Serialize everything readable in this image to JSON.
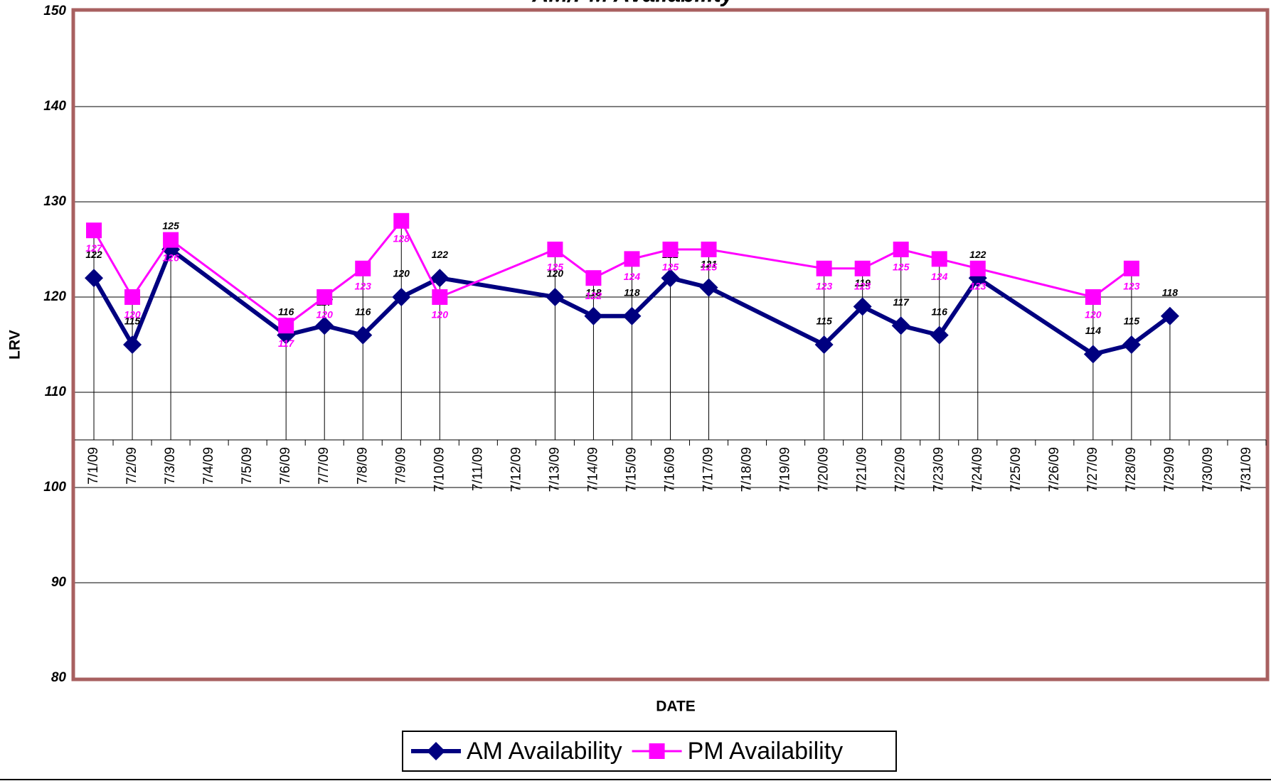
{
  "chart_data": {
    "type": "line",
    "title": "AM/PM Availability",
    "x_label": "DATE",
    "y_label": "LRV",
    "categories": [
      "7/1/09",
      "7/2/09",
      "7/3/09",
      "7/4/09",
      "7/5/09",
      "7/6/09",
      "7/7/09",
      "7/8/09",
      "7/9/09",
      "7/10/09",
      "7/11/09",
      "7/12/09",
      "7/13/09",
      "7/14/09",
      "7/15/09",
      "7/16/09",
      "7/17/09",
      "7/18/09",
      "7/19/09",
      "7/20/09",
      "7/21/09",
      "7/22/09",
      "7/23/09",
      "7/24/09",
      "7/25/09",
      "7/26/09",
      "7/27/09",
      "7/28/09",
      "7/29/09",
      "7/30/09",
      "7/31/09"
    ],
    "series": [
      {
        "name": "AM Availability",
        "color": "#000080",
        "marker": "diamond",
        "x": [
          "7/1/09",
          "7/2/09",
          "7/3/09",
          "7/6/09",
          "7/7/09",
          "7/8/09",
          "7/9/09",
          "7/10/09",
          "7/13/09",
          "7/14/09",
          "7/15/09",
          "7/16/09",
          "7/17/09",
          "7/20/09",
          "7/21/09",
          "7/22/09",
          "7/23/09",
          "7/24/09",
          "7/27/09",
          "7/28/09",
          "7/29/09"
        ],
        "values": [
          122,
          115,
          125,
          116,
          117,
          116,
          120,
          122,
          120,
          118,
          118,
          122,
          121,
          115,
          119,
          117,
          116,
          122,
          114,
          115,
          118
        ]
      },
      {
        "name": "PM Availability",
        "color": "#ff00ff",
        "marker": "square",
        "x": [
          "7/1/09",
          "7/2/09",
          "7/3/09",
          "7/6/09",
          "7/7/09",
          "7/8/09",
          "7/9/09",
          "7/10/09",
          "7/13/09",
          "7/14/09",
          "7/15/09",
          "7/16/09",
          "7/17/09",
          "7/20/09",
          "7/21/09",
          "7/22/09",
          "7/23/09",
          "7/24/09",
          "7/27/09",
          "7/28/09"
        ],
        "values": [
          127,
          120,
          126,
          117,
          120,
          123,
          128,
          120,
          125,
          122,
          124,
          125,
          125,
          123,
          123,
          125,
          124,
          123,
          120,
          123
        ]
      }
    ],
    "ylim": [
      80,
      150
    ],
    "yticks": [
      80,
      90,
      100,
      110,
      120,
      130,
      140,
      150
    ],
    "xaxis_crosses": 105,
    "grid": true,
    "drop_lines": true,
    "legend": "bottom"
  }
}
